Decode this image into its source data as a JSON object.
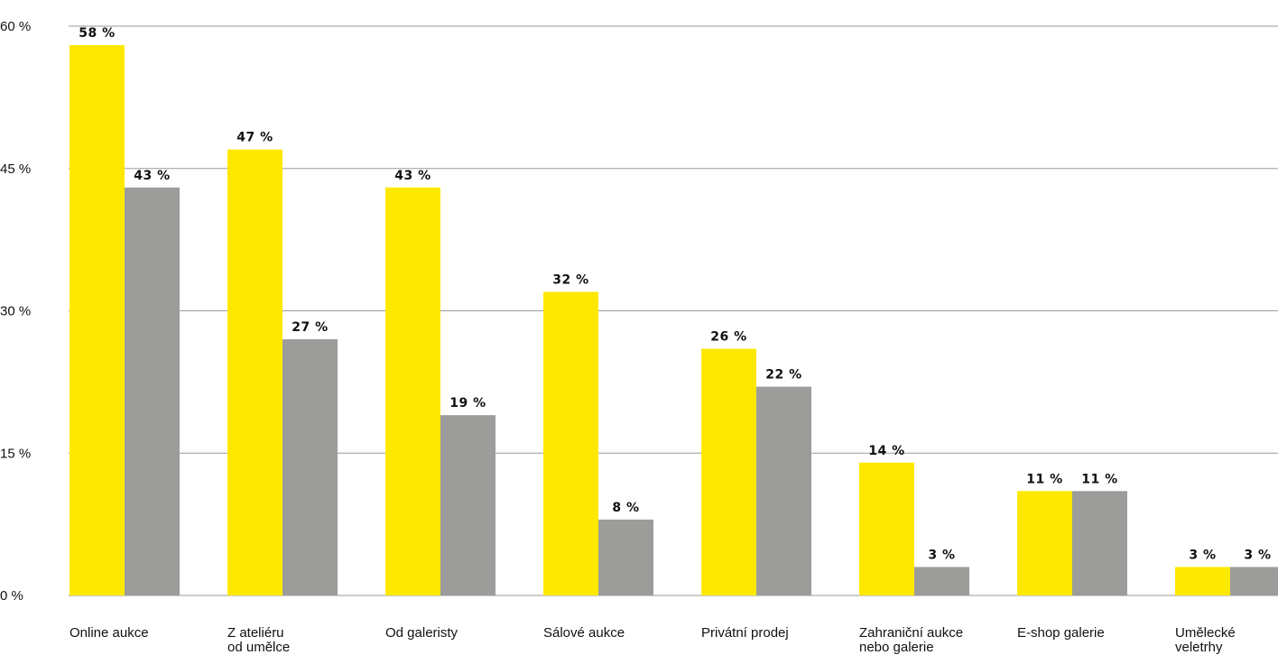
{
  "chart_data": {
    "type": "bar",
    "categories": [
      [
        "Online aukce"
      ],
      [
        "Z ateliéru",
        "od umělce"
      ],
      [
        "Od galeristy"
      ],
      [
        "Sálové aukce"
      ],
      [
        "Privátní prodej"
      ],
      [
        "Zahraniční aukce",
        "nebo galerie"
      ],
      [
        "E-shop galerie"
      ],
      [
        "Umělecké",
        "veletrhy"
      ]
    ],
    "series": [
      {
        "color": "#ffe800",
        "values": [
          58,
          47,
          43,
          32,
          26,
          14,
          11,
          3
        ]
      },
      {
        "color": "#9c9c9b",
        "values": [
          43,
          27,
          19,
          8,
          22,
          3,
          11,
          3
        ]
      }
    ],
    "value_labels": [
      [
        "58 %",
        "47 %",
        "43 %",
        "32 %",
        "26 %",
        "14 %",
        "11 %",
        "3 %"
      ],
      [
        "43 %",
        "27 %",
        "19 %",
        "8 %",
        "22 %",
        "3 %",
        "11 %",
        "3 %"
      ]
    ],
    "yticks": [
      0,
      15,
      30,
      45,
      60
    ],
    "ytick_labels": [
      "0 %",
      "15 %",
      "30 %",
      "45 %",
      "60 %"
    ],
    "ylim": [
      0,
      60
    ],
    "grid": true,
    "legend": "none"
  }
}
